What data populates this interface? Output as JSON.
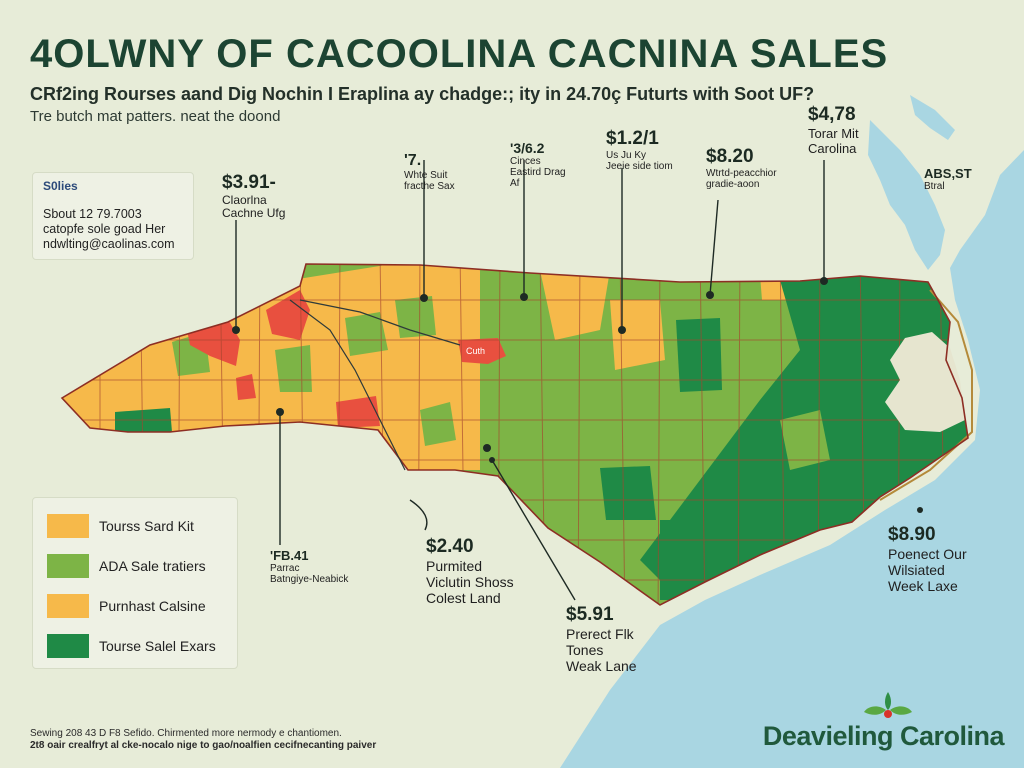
{
  "title": "4OLWNY OF CACOOLINA CACNINA SALES",
  "subtitle": "CRf2ing Rourses aand Dig Nochin I Eraplina ay chadge:; ity in 24.70ç Futurts with Soot UF?",
  "tagline": "Tre butch mat patters. neat the doond",
  "info_box": {
    "heading": "S0lies",
    "lines": [
      "Sbout 12 79.7003",
      "catopfe sole goad Her",
      "ndwlting@caolinas.com"
    ]
  },
  "legend": [
    {
      "label": "Tourss Sard Kit",
      "color": "#f6b94a"
    },
    {
      "label": "ADA Sale tratiers",
      "color": "#7db446"
    },
    {
      "label": "Purnhast Calsine",
      "color": "#f6b94a"
    },
    {
      "label": "Tourse Salel Exars",
      "color": "#1f8a46"
    }
  ],
  "callouts": [
    {
      "price": "$3.91-",
      "lines": [
        "Claorlna",
        "Cachne Ufg"
      ]
    },
    {
      "price": "'7.",
      "lines": [
        "Whte Suit",
        "fracthe Sax"
      ]
    },
    {
      "price": "'3/6.2",
      "lines": [
        "Cinces",
        "Eastird Drag",
        "Af"
      ]
    },
    {
      "price": "$1.2/1",
      "lines": [
        "Us Ju Ky",
        "Jeeie side tiom"
      ]
    },
    {
      "price": "$8.20",
      "lines": [
        "Wtrtd-peacchior",
        "gradie-aoon"
      ]
    },
    {
      "price": "$4,78",
      "lines": [
        "Torar Mit",
        "Carolina"
      ]
    },
    {
      "price": "ABS,ST",
      "lines": [
        "Btral"
      ]
    },
    {
      "price": "'FB.41",
      "lines": [
        "Parrac",
        "Batngiye-Neabick"
      ]
    },
    {
      "price": "$2.40",
      "lines": [
        "Purmited",
        "Viclutin Shoss",
        "Colest Land"
      ]
    },
    {
      "price": "$5.91",
      "lines": [
        "Prerect Flk",
        "Tones",
        "Weak Lane"
      ]
    },
    {
      "price": "$8.90",
      "lines": [
        "Poenect Our",
        "Wilsiated",
        "Week Laxe"
      ]
    }
  ],
  "city_label": "Cuth",
  "footer_lines": [
    "Sewing 208 43 D F8 Sefido. Chirmented more nermody e chantiomen.",
    "2t8 oair crealfryt al cke-nocalo nige to gao/noalfien cecifnecanting paiver"
  ],
  "brand": "Deavieling Carolina",
  "colors": {
    "yellow": "#f6b94a",
    "light_green": "#7db446",
    "dark_green": "#1f8a46",
    "red": "#e8503f",
    "ocean": "#a9d6e2",
    "land": "#e7ecd8"
  }
}
